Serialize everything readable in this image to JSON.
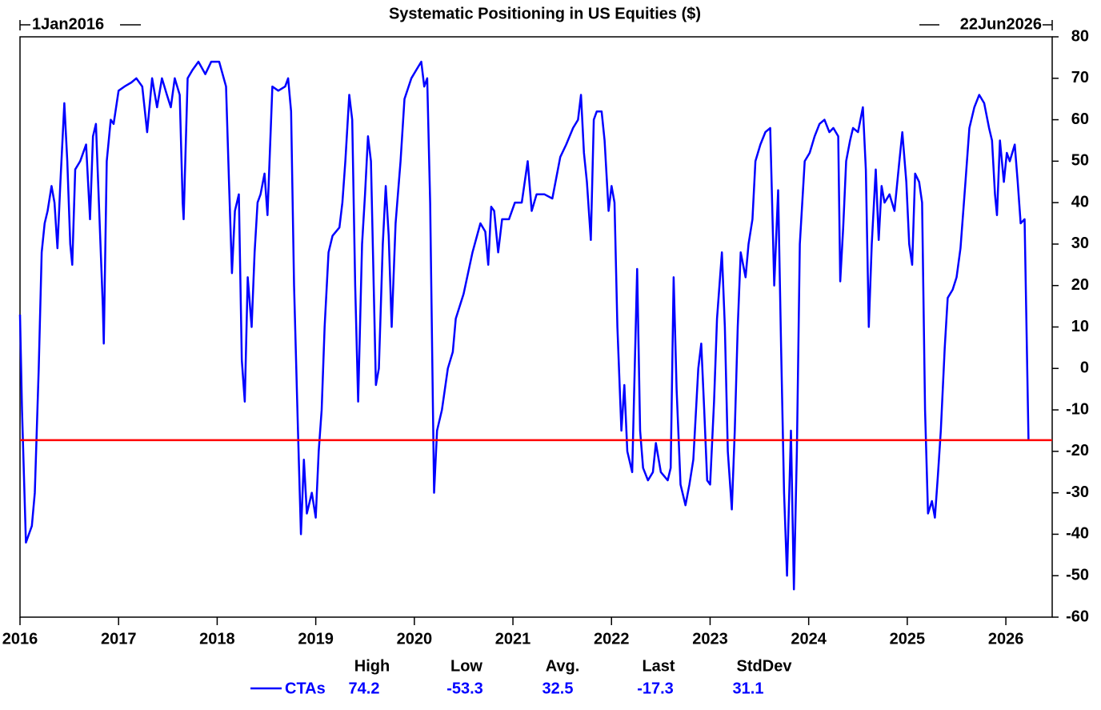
{
  "chart_data": {
    "type": "line",
    "title": "Systematic Positioning in US Equities ($)",
    "start_label": "1Jan2016",
    "end_label": "22Jun2026",
    "xlim": [
      2016,
      2026.47
    ],
    "xticks": [
      2016,
      2017,
      2018,
      2019,
      2020,
      2021,
      2022,
      2023,
      2024,
      2025,
      2026
    ],
    "ylim": [
      -60,
      80
    ],
    "yticks": [
      -60,
      -50,
      -40,
      -30,
      -20,
      -10,
      0,
      10,
      20,
      30,
      40,
      50,
      60,
      70,
      80
    ],
    "reference_color": "#ff0000",
    "x": [
      2016.0,
      2016.02,
      2016.06,
      2016.09,
      2016.12,
      2016.15,
      2016.19,
      2016.22,
      2016.25,
      2016.28,
      2016.32,
      2016.35,
      2016.38,
      2016.41,
      2016.45,
      2016.48,
      2016.51,
      2016.53,
      2016.56,
      2016.61,
      2016.67,
      2016.71,
      2016.74,
      2016.77,
      2016.8,
      2016.84,
      2016.85,
      2016.88,
      2016.92,
      2016.95,
      2017.0,
      2017.06,
      2017.13,
      2017.18,
      2017.24,
      2017.29,
      2017.34,
      2017.39,
      2017.44,
      2017.49,
      2017.53,
      2017.57,
      2017.62,
      2017.65,
      2017.66,
      2017.7,
      2017.75,
      2017.81,
      2017.88,
      2017.94,
      2018.02,
      2018.09,
      2018.12,
      2018.15,
      2018.18,
      2018.22,
      2018.25,
      2018.28,
      2018.31,
      2018.35,
      2018.38,
      2018.41,
      2018.44,
      2018.48,
      2018.51,
      2018.56,
      2018.62,
      2018.69,
      2018.72,
      2018.75,
      2018.78,
      2018.82,
      2018.85,
      2018.88,
      2018.91,
      2018.96,
      2019.0,
      2019.03,
      2019.06,
      2019.09,
      2019.13,
      2019.17,
      2019.24,
      2019.27,
      2019.3,
      2019.34,
      2019.37,
      2019.4,
      2019.43,
      2019.47,
      2019.5,
      2019.53,
      2019.56,
      2019.61,
      2019.64,
      2019.68,
      2019.71,
      2019.74,
      2019.77,
      2019.81,
      2019.86,
      2019.9,
      2019.97,
      2020.02,
      2020.07,
      2020.1,
      2020.13,
      2020.16,
      2020.2,
      2020.23,
      2020.28,
      2020.34,
      2020.39,
      2020.42,
      2020.5,
      2020.59,
      2020.67,
      2020.72,
      2020.75,
      2020.78,
      2020.81,
      2020.85,
      2020.89,
      2020.96,
      2021.02,
      2021.09,
      2021.15,
      2021.19,
      2021.24,
      2021.32,
      2021.4,
      2021.48,
      2021.54,
      2021.61,
      2021.66,
      2021.69,
      2021.72,
      2021.75,
      2021.79,
      2021.82,
      2021.85,
      2021.9,
      2021.93,
      2021.97,
      2022.0,
      2022.03,
      2022.06,
      2022.1,
      2022.13,
      2022.16,
      2022.21,
      2022.26,
      2022.29,
      2022.32,
      2022.37,
      2022.42,
      2022.45,
      2022.5,
      2022.57,
      2022.6,
      2022.63,
      2022.66,
      2022.7,
      2022.75,
      2022.79,
      2022.83,
      2022.88,
      2022.91,
      2022.94,
      2022.97,
      2023.0,
      2023.04,
      2023.07,
      2023.12,
      2023.15,
      2023.18,
      2023.22,
      2023.25,
      2023.28,
      2023.31,
      2023.36,
      2023.39,
      2023.43,
      2023.46,
      2023.51,
      2023.56,
      2023.61,
      2023.64,
      2023.65,
      2023.69,
      2023.72,
      2023.75,
      2023.78,
      2023.82,
      2023.85,
      2023.88,
      2023.91,
      2023.96,
      2024.01,
      2024.06,
      2024.11,
      2024.16,
      2024.21,
      2024.25,
      2024.3,
      2024.32,
      2024.35,
      2024.38,
      2024.42,
      2024.45,
      2024.5,
      2024.55,
      2024.58,
      2024.61,
      2024.64,
      2024.68,
      2024.71,
      2024.74,
      2024.77,
      2024.82,
      2024.87,
      2024.92,
      2024.95,
      2024.99,
      2025.02,
      2025.05,
      2025.08,
      2025.12,
      2025.15,
      2025.18,
      2025.21,
      2025.25,
      2025.28,
      2025.31,
      2025.34,
      2025.38,
      2025.41,
      2025.46,
      2025.5,
      2025.54,
      2025.59,
      2025.63,
      2025.68,
      2025.73,
      2025.78,
      2025.83,
      2025.86,
      2025.89,
      2025.91,
      2025.94,
      2025.98,
      2026.01,
      2026.04,
      2026.09,
      2026.12,
      2026.15,
      2026.19,
      2026.23
    ],
    "series": [
      {
        "name": "CTAs",
        "color": "#0000ff",
        "values": [
          13,
          -10,
          -42,
          -40,
          -38,
          -30,
          0,
          28,
          35,
          38,
          44,
          40,
          29,
          45,
          64,
          50,
          30,
          25,
          48,
          50,
          54,
          36,
          56,
          59,
          40,
          15,
          6,
          50,
          60,
          59,
          67,
          68,
          69,
          70,
          68,
          57,
          70,
          63,
          70,
          66,
          63,
          70,
          66,
          40,
          36,
          70,
          72,
          74,
          71,
          74,
          74,
          68,
          45,
          23,
          38,
          42,
          2,
          -8,
          22,
          10,
          28,
          40,
          42,
          47,
          37,
          68,
          67,
          68,
          70,
          62,
          20,
          -15,
          -40,
          -22,
          -35,
          -30,
          -36,
          -20,
          -10,
          10,
          28,
          32,
          34,
          40,
          50,
          66,
          60,
          20,
          -8,
          30,
          42,
          56,
          50,
          -4,
          0,
          30,
          44,
          32,
          10,
          35,
          50,
          65,
          70,
          72,
          74,
          68,
          70,
          40,
          -30,
          -15,
          -10,
          0,
          4,
          12,
          18,
          28,
          35,
          33,
          25,
          39,
          38,
          28,
          36,
          36,
          40,
          40,
          50,
          38,
          42,
          42,
          41,
          51,
          54,
          58,
          60,
          66,
          52,
          45,
          31,
          60,
          62,
          62,
          55,
          38,
          44,
          40,
          10,
          -15,
          -4,
          -20,
          -25,
          24,
          -15,
          -24,
          -27,
          -25,
          -18,
          -25,
          -27,
          -24,
          22,
          -5,
          -28,
          -33,
          -28,
          -22,
          0,
          6,
          -10,
          -27,
          -28,
          -8,
          12,
          28,
          10,
          -20,
          -34,
          -15,
          10,
          28,
          22,
          30,
          36,
          50,
          54,
          57,
          58,
          30,
          20,
          43,
          5,
          -30,
          -50,
          -15,
          -53.3,
          -20,
          30,
          50,
          52,
          56,
          59,
          60,
          57,
          58,
          56,
          21,
          34,
          50,
          55,
          58,
          57,
          63,
          48,
          10,
          30,
          48,
          31,
          44,
          40,
          42,
          38,
          50,
          57,
          45,
          30,
          25,
          47,
          45,
          40,
          -10,
          -35,
          -32,
          -36,
          -26,
          -15,
          5,
          17,
          19,
          22,
          29,
          45,
          58,
          63,
          66,
          64,
          58,
          55,
          42,
          37,
          55,
          45,
          52,
          50,
          54,
          45,
          35,
          36,
          -17.3
        ]
      }
    ],
    "stats": {
      "headers": [
        "High",
        "Low",
        "Avg.",
        "Last",
        "StdDev"
      ],
      "values": [
        74.2,
        -53.3,
        32.5,
        -17.3,
        31.1
      ]
    }
  }
}
